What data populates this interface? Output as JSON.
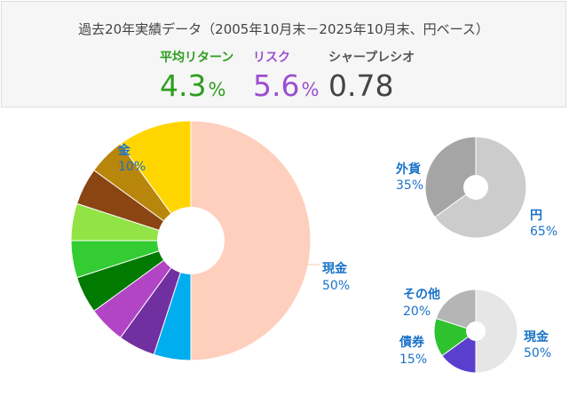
{
  "header": {
    "title": "過去20年実績データ（2005年10月末－2025年10月末、円ベース）",
    "return_label": "平均リターン",
    "return_value": "4.3",
    "return_unit": "%",
    "risk_label": "リスク",
    "risk_value": "5.6",
    "risk_unit": "%",
    "sharpe_label": "シャープレシオ",
    "sharpe_value": "0.78",
    "colors": {
      "return": "#2e9e1f",
      "risk": "#9b4fd0",
      "sharpe": "#444444"
    }
  },
  "chart_data": [
    {
      "type": "pie",
      "title": "",
      "slices": [
        {
          "label": "現金",
          "pct_label": "50%",
          "value": 50,
          "color": "#ffcfbd"
        },
        {
          "label": "",
          "value": 5,
          "color": "#00adef"
        },
        {
          "label": "",
          "value": 5,
          "color": "#7030a0"
        },
        {
          "label": "",
          "value": 5,
          "color": "#b145c4"
        },
        {
          "label": "",
          "value": 5,
          "color": "#007a00"
        },
        {
          "label": "",
          "value": 5,
          "color": "#33cc33"
        },
        {
          "label": "",
          "value": 5,
          "color": "#92e345"
        },
        {
          "label": "",
          "value": 5,
          "color": "#8b4513"
        },
        {
          "label": "",
          "value": 5,
          "color": "#b8860b"
        },
        {
          "label": "金",
          "pct_label": "10%",
          "value": 10,
          "color": "#ffd500"
        }
      ]
    },
    {
      "type": "pie",
      "title": "",
      "slices": [
        {
          "label": "円",
          "pct_label": "65%",
          "value": 65,
          "color": "#cccccc"
        },
        {
          "label": "外貨",
          "pct_label": "35%",
          "value": 35,
          "color": "#a5a5a5"
        }
      ]
    },
    {
      "type": "pie",
      "title": "",
      "slices": [
        {
          "label": "現金",
          "pct_label": "50%",
          "value": 50,
          "color": "#e6e6e6"
        },
        {
          "label": "",
          "value": 15,
          "color": "#5a3fcf"
        },
        {
          "label": "債券",
          "pct_label": "15%",
          "value": 15,
          "color": "#2fc22f"
        },
        {
          "label": "その他",
          "pct_label": "20%",
          "value": 20,
          "color": "#b5b5b5"
        }
      ]
    }
  ]
}
